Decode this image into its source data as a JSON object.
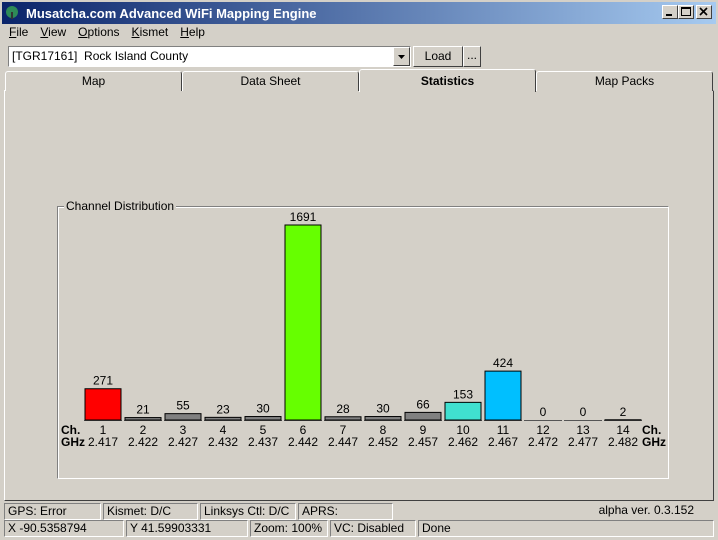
{
  "window": {
    "title": "Musatcha.com Advanced WiFi Mapping Engine"
  },
  "menu": [
    "File",
    "View",
    "Options",
    "Kismet",
    "Help"
  ],
  "toolbar": {
    "location": "[TGR17161]  Rock Island County",
    "load_button": "Load",
    "more_button": "..."
  },
  "tabs": [
    "Map",
    "Data Sheet",
    "Statistics",
    "Map Packs"
  ],
  "chart_data": {
    "type": "bar",
    "title": "Channel Distribution",
    "x_label": "Ch.",
    "x2_label": "GHz",
    "categories": [
      "1",
      "2",
      "3",
      "4",
      "5",
      "6",
      "7",
      "8",
      "9",
      "10",
      "11",
      "12",
      "13",
      "14"
    ],
    "frequencies": [
      "2.417",
      "2.422",
      "2.427",
      "2.432",
      "2.437",
      "2.442",
      "2.447",
      "2.452",
      "2.457",
      "2.462",
      "2.467",
      "2.472",
      "2.477",
      "2.482"
    ],
    "values": [
      271,
      21,
      55,
      23,
      30,
      1691,
      28,
      30,
      66,
      153,
      424,
      0,
      0,
      2
    ],
    "colors": [
      "#ff0000",
      "#808080",
      "#808080",
      "#808080",
      "#808080",
      "#66ff00",
      "#808080",
      "#808080",
      "#808080",
      "#40e0d0",
      "#00bfff",
      "#808080",
      "#808080",
      "#808080"
    ],
    "ylim": [
      0,
      1691
    ]
  },
  "status_bar": {
    "gps": "GPS: Error",
    "kismet": "Kismet: D/C",
    "linksys": "Linksys Ctl: D/C",
    "aprs": "APRS:",
    "version": "alpha ver. 0.3.152",
    "x": "X -90.5358794",
    "y": "Y 41.59903331",
    "zoom": "Zoom: 100%",
    "vc": "VC: Disabled",
    "state": "Done"
  }
}
